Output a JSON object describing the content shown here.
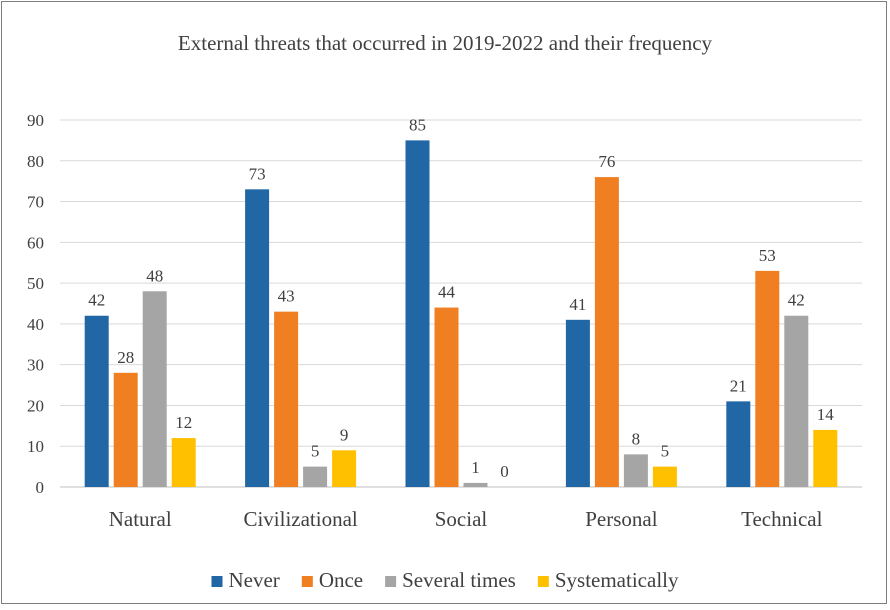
{
  "chart_data": {
    "type": "bar",
    "title": "External threats that occurred in 2019-2022 and their frequency",
    "xlabel": "",
    "ylabel": "",
    "ylim": [
      0,
      90
    ],
    "y_ticks": [
      "0",
      "10",
      "20",
      "30",
      "40",
      "50",
      "60",
      "70",
      "80",
      "90"
    ],
    "grid": true,
    "legend_position": "bottom",
    "categories": [
      "Natural",
      "Civilizational",
      "Social",
      "Personal",
      "Technical"
    ],
    "series": [
      {
        "name": "Never",
        "color": "#2166a5",
        "values": [
          42,
          73,
          85,
          41,
          21
        ]
      },
      {
        "name": "Once",
        "color": "#f07f22",
        "values": [
          28,
          43,
          44,
          76,
          53
        ]
      },
      {
        "name": "Several times",
        "color": "#a5a5a5",
        "values": [
          48,
          5,
          1,
          8,
          42
        ]
      },
      {
        "name": "Systematically",
        "color": "#ffc000",
        "values": [
          12,
          9,
          0,
          5,
          14
        ]
      }
    ]
  }
}
